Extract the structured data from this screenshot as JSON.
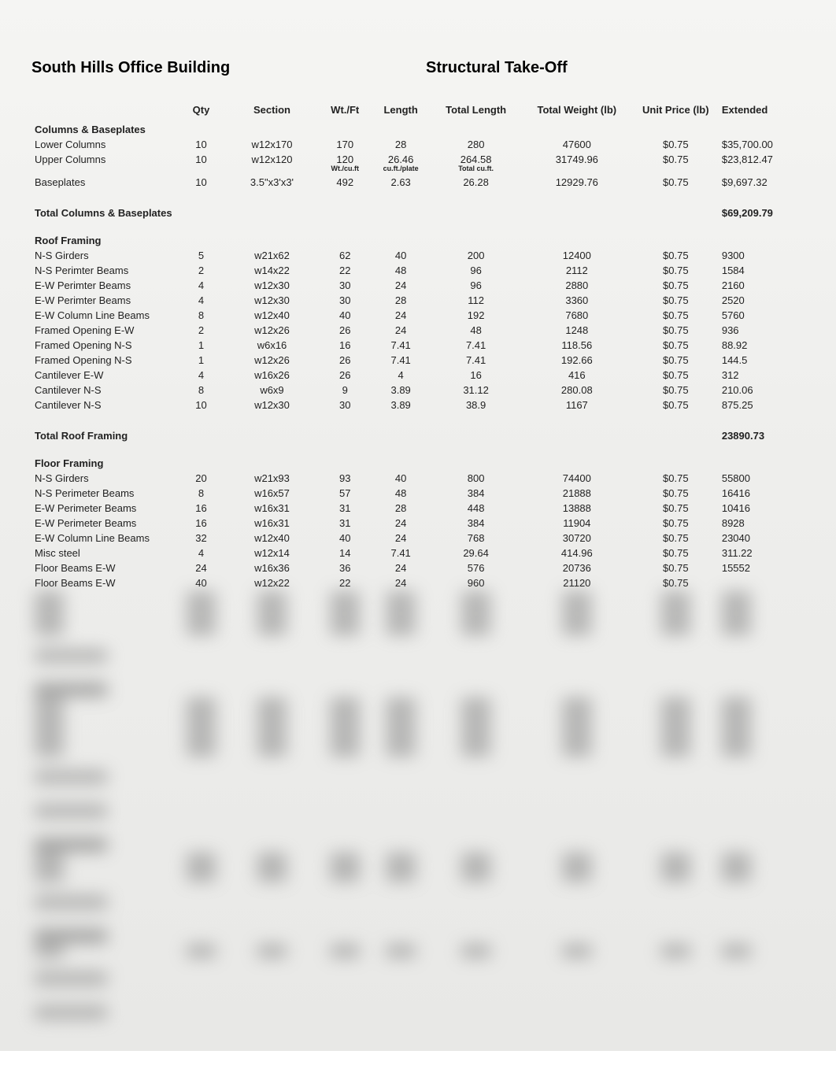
{
  "header": {
    "title_left": "South Hills Office Building",
    "title_right": "Structural Take-Off"
  },
  "columns": {
    "name": "",
    "qty": "Qty",
    "section": "Section",
    "wtft": "Wt./Ft",
    "length": "Length",
    "totlen": "Total Length",
    "totwt": "Total Weight (lb)",
    "unit": "Unit Price (lb)",
    "ext": "Extended"
  },
  "sections": [
    {
      "title": "Columns & Baseplates",
      "rows": [
        {
          "name": "Lower Columns",
          "qty": "10",
          "section": "w12x170",
          "wtft": "170",
          "length": "28",
          "totlen": "280",
          "totwt": "47600",
          "unit": "$0.75",
          "ext": "$35,700.00"
        },
        {
          "name": "Upper Columns",
          "qty": "10",
          "section": "w12x120",
          "wtft": "120",
          "length": "26.46",
          "totlen": "264.58",
          "totwt": "31749.96",
          "unit": "$0.75",
          "ext": "$23,812.47",
          "sublabels": {
            "wtft": "Wt./cu.ft",
            "length": "cu.ft./plate",
            "totlen": "Total cu.ft."
          }
        },
        {
          "name": "Baseplates",
          "qty": "10",
          "section": "3.5\"x3'x3'",
          "wtft": "492",
          "length": "2.63",
          "totlen": "26.28",
          "totwt": "12929.76",
          "unit": "$0.75",
          "ext": "$9,697.32"
        }
      ],
      "total": {
        "name": "Total Columns & Baseplates",
        "ext": "$69,209.79"
      }
    },
    {
      "title": "Roof Framing",
      "rows": [
        {
          "name": "N-S Girders",
          "qty": "5",
          "section": "w21x62",
          "wtft": "62",
          "length": "40",
          "totlen": "200",
          "totwt": "12400",
          "unit": "$0.75",
          "ext": "9300"
        },
        {
          "name": "N-S Perimter Beams",
          "qty": "2",
          "section": "w14x22",
          "wtft": "22",
          "length": "48",
          "totlen": "96",
          "totwt": "2112",
          "unit": "$0.75",
          "ext": "1584"
        },
        {
          "name": "E-W Perimter Beams",
          "qty": "4",
          "section": "w12x30",
          "wtft": "30",
          "length": "24",
          "totlen": "96",
          "totwt": "2880",
          "unit": "$0.75",
          "ext": "2160"
        },
        {
          "name": "E-W Perimter Beams",
          "qty": "4",
          "section": "w12x30",
          "wtft": "30",
          "length": "28",
          "totlen": "112",
          "totwt": "3360",
          "unit": "$0.75",
          "ext": "2520"
        },
        {
          "name": "E-W Column Line Beams",
          "qty": "8",
          "section": "w12x40",
          "wtft": "40",
          "length": "24",
          "totlen": "192",
          "totwt": "7680",
          "unit": "$0.75",
          "ext": "5760"
        },
        {
          "name": "Framed Opening E-W",
          "qty": "2",
          "section": "w12x26",
          "wtft": "26",
          "length": "24",
          "totlen": "48",
          "totwt": "1248",
          "unit": "$0.75",
          "ext": "936"
        },
        {
          "name": "Framed Opening N-S",
          "qty": "1",
          "section": "w6x16",
          "wtft": "16",
          "length": "7.41",
          "totlen": "7.41",
          "totwt": "118.56",
          "unit": "$0.75",
          "ext": "88.92"
        },
        {
          "name": "Framed Opening N-S",
          "qty": "1",
          "section": "w12x26",
          "wtft": "26",
          "length": "7.41",
          "totlen": "7.41",
          "totwt": "192.66",
          "unit": "$0.75",
          "ext": "144.5"
        },
        {
          "name": "Cantilever E-W",
          "qty": "4",
          "section": "w16x26",
          "wtft": "26",
          "length": "4",
          "totlen": "16",
          "totwt": "416",
          "unit": "$0.75",
          "ext": "312"
        },
        {
          "name": "Cantilever N-S",
          "qty": "8",
          "section": "w6x9",
          "wtft": "9",
          "length": "3.89",
          "totlen": "31.12",
          "totwt": "280.08",
          "unit": "$0.75",
          "ext": "210.06"
        },
        {
          "name": "Cantilever N-S",
          "qty": "10",
          "section": "w12x30",
          "wtft": "30",
          "length": "3.89",
          "totlen": "38.9",
          "totwt": "1167",
          "unit": "$0.75",
          "ext": "875.25"
        }
      ],
      "total": {
        "name": "Total Roof Framing",
        "ext": "23890.73"
      }
    },
    {
      "title": "Floor Framing",
      "rows": [
        {
          "name": "N-S Girders",
          "qty": "20",
          "section": "w21x93",
          "wtft": "93",
          "length": "40",
          "totlen": "800",
          "totwt": "74400",
          "unit": "$0.75",
          "ext": "55800"
        },
        {
          "name": "N-S Perimeter Beams",
          "qty": "8",
          "section": "w16x57",
          "wtft": "57",
          "length": "48",
          "totlen": "384",
          "totwt": "21888",
          "unit": "$0.75",
          "ext": "16416"
        },
        {
          "name": "E-W Perimeter Beams",
          "qty": "16",
          "section": "w16x31",
          "wtft": "31",
          "length": "28",
          "totlen": "448",
          "totwt": "13888",
          "unit": "$0.75",
          "ext": "10416"
        },
        {
          "name": "E-W Perimeter Beams",
          "qty": "16",
          "section": "w16x31",
          "wtft": "31",
          "length": "24",
          "totlen": "384",
          "totwt": "11904",
          "unit": "$0.75",
          "ext": "8928"
        },
        {
          "name": "E-W Column Line Beams",
          "qty": "32",
          "section": "w12x40",
          "wtft": "40",
          "length": "24",
          "totlen": "768",
          "totwt": "30720",
          "unit": "$0.75",
          "ext": "23040"
        },
        {
          "name": "Misc steel",
          "qty": "4",
          "section": "w12x14",
          "wtft": "14",
          "length": "7.41",
          "totlen": "29.64",
          "totwt": "414.96",
          "unit": "$0.75",
          "ext": "311.22"
        },
        {
          "name": "Floor Beams E-W",
          "qty": "24",
          "section": "w16x36",
          "wtft": "36",
          "length": "24",
          "totlen": "576",
          "totwt": "20736",
          "unit": "$0.75",
          "ext": "15552"
        },
        {
          "name": "Floor Beams E-W",
          "qty": "40",
          "section": "w12x22",
          "wtft": "22",
          "length": "24",
          "totlen": "960",
          "totwt": "21120",
          "unit": "$0.75",
          "ext": ""
        }
      ]
    }
  ],
  "blurred": [
    {
      "type": "rows",
      "count": 3
    },
    {
      "type": "total"
    },
    {
      "type": "header"
    },
    {
      "type": "rows",
      "count": 4
    },
    {
      "type": "total"
    },
    {
      "type": "total_standalone"
    },
    {
      "type": "header"
    },
    {
      "type": "rows",
      "count": 2
    },
    {
      "type": "total"
    },
    {
      "type": "header"
    },
    {
      "type": "rows",
      "count": 1
    },
    {
      "type": "total"
    },
    {
      "type": "total_standalone"
    }
  ]
}
